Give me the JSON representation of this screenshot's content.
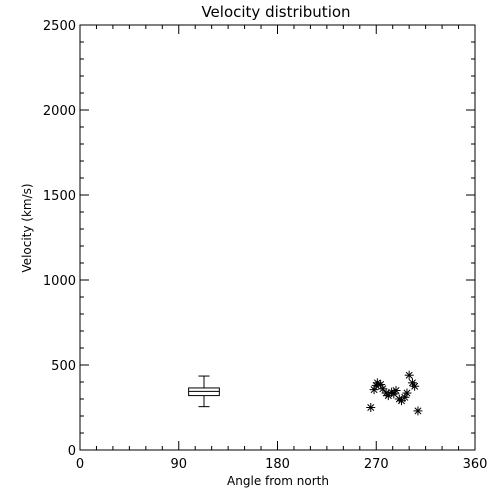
{
  "chart_data": {
    "type": "scatter",
    "title": "Velocity distribution",
    "xlabel": "Angle from north",
    "ylabel": "Velocity (km/s)",
    "xlim": [
      0,
      360
    ],
    "ylim": [
      0,
      2500
    ],
    "xticks": [
      0,
      90,
      180,
      270,
      360
    ],
    "yticks": [
      0,
      500,
      1000,
      1500,
      2000,
      2500
    ],
    "x_tick_labels": [
      "0",
      "90",
      "180",
      "270",
      "360"
    ],
    "y_tick_labels": [
      "0",
      "500",
      "1000",
      "1500",
      "2000",
      "2500"
    ],
    "x_minor_step": 15,
    "y_minor_step": 100,
    "grid": false,
    "legend": "none",
    "colors": {
      "background": "#ffffff",
      "foreground": "#000000"
    },
    "boxplot": {
      "x_center": 113,
      "x_halfwidth": 14,
      "min": 255,
      "q1": 320,
      "median": 345,
      "q3": 365,
      "max": 435
    },
    "series": [
      {
        "marker": "asterisk",
        "points": [
          {
            "x": 265,
            "y": 250
          },
          {
            "x": 268,
            "y": 355
          },
          {
            "x": 270,
            "y": 380
          },
          {
            "x": 271,
            "y": 395
          },
          {
            "x": 274,
            "y": 385
          },
          {
            "x": 276,
            "y": 360
          },
          {
            "x": 279,
            "y": 335
          },
          {
            "x": 281,
            "y": 320
          },
          {
            "x": 284,
            "y": 340
          },
          {
            "x": 286,
            "y": 330
          },
          {
            "x": 288,
            "y": 350
          },
          {
            "x": 291,
            "y": 300
          },
          {
            "x": 293,
            "y": 290
          },
          {
            "x": 296,
            "y": 310
          },
          {
            "x": 298,
            "y": 335
          },
          {
            "x": 300,
            "y": 440
          },
          {
            "x": 303,
            "y": 395
          },
          {
            "x": 305,
            "y": 375
          },
          {
            "x": 308,
            "y": 230
          }
        ]
      }
    ]
  }
}
